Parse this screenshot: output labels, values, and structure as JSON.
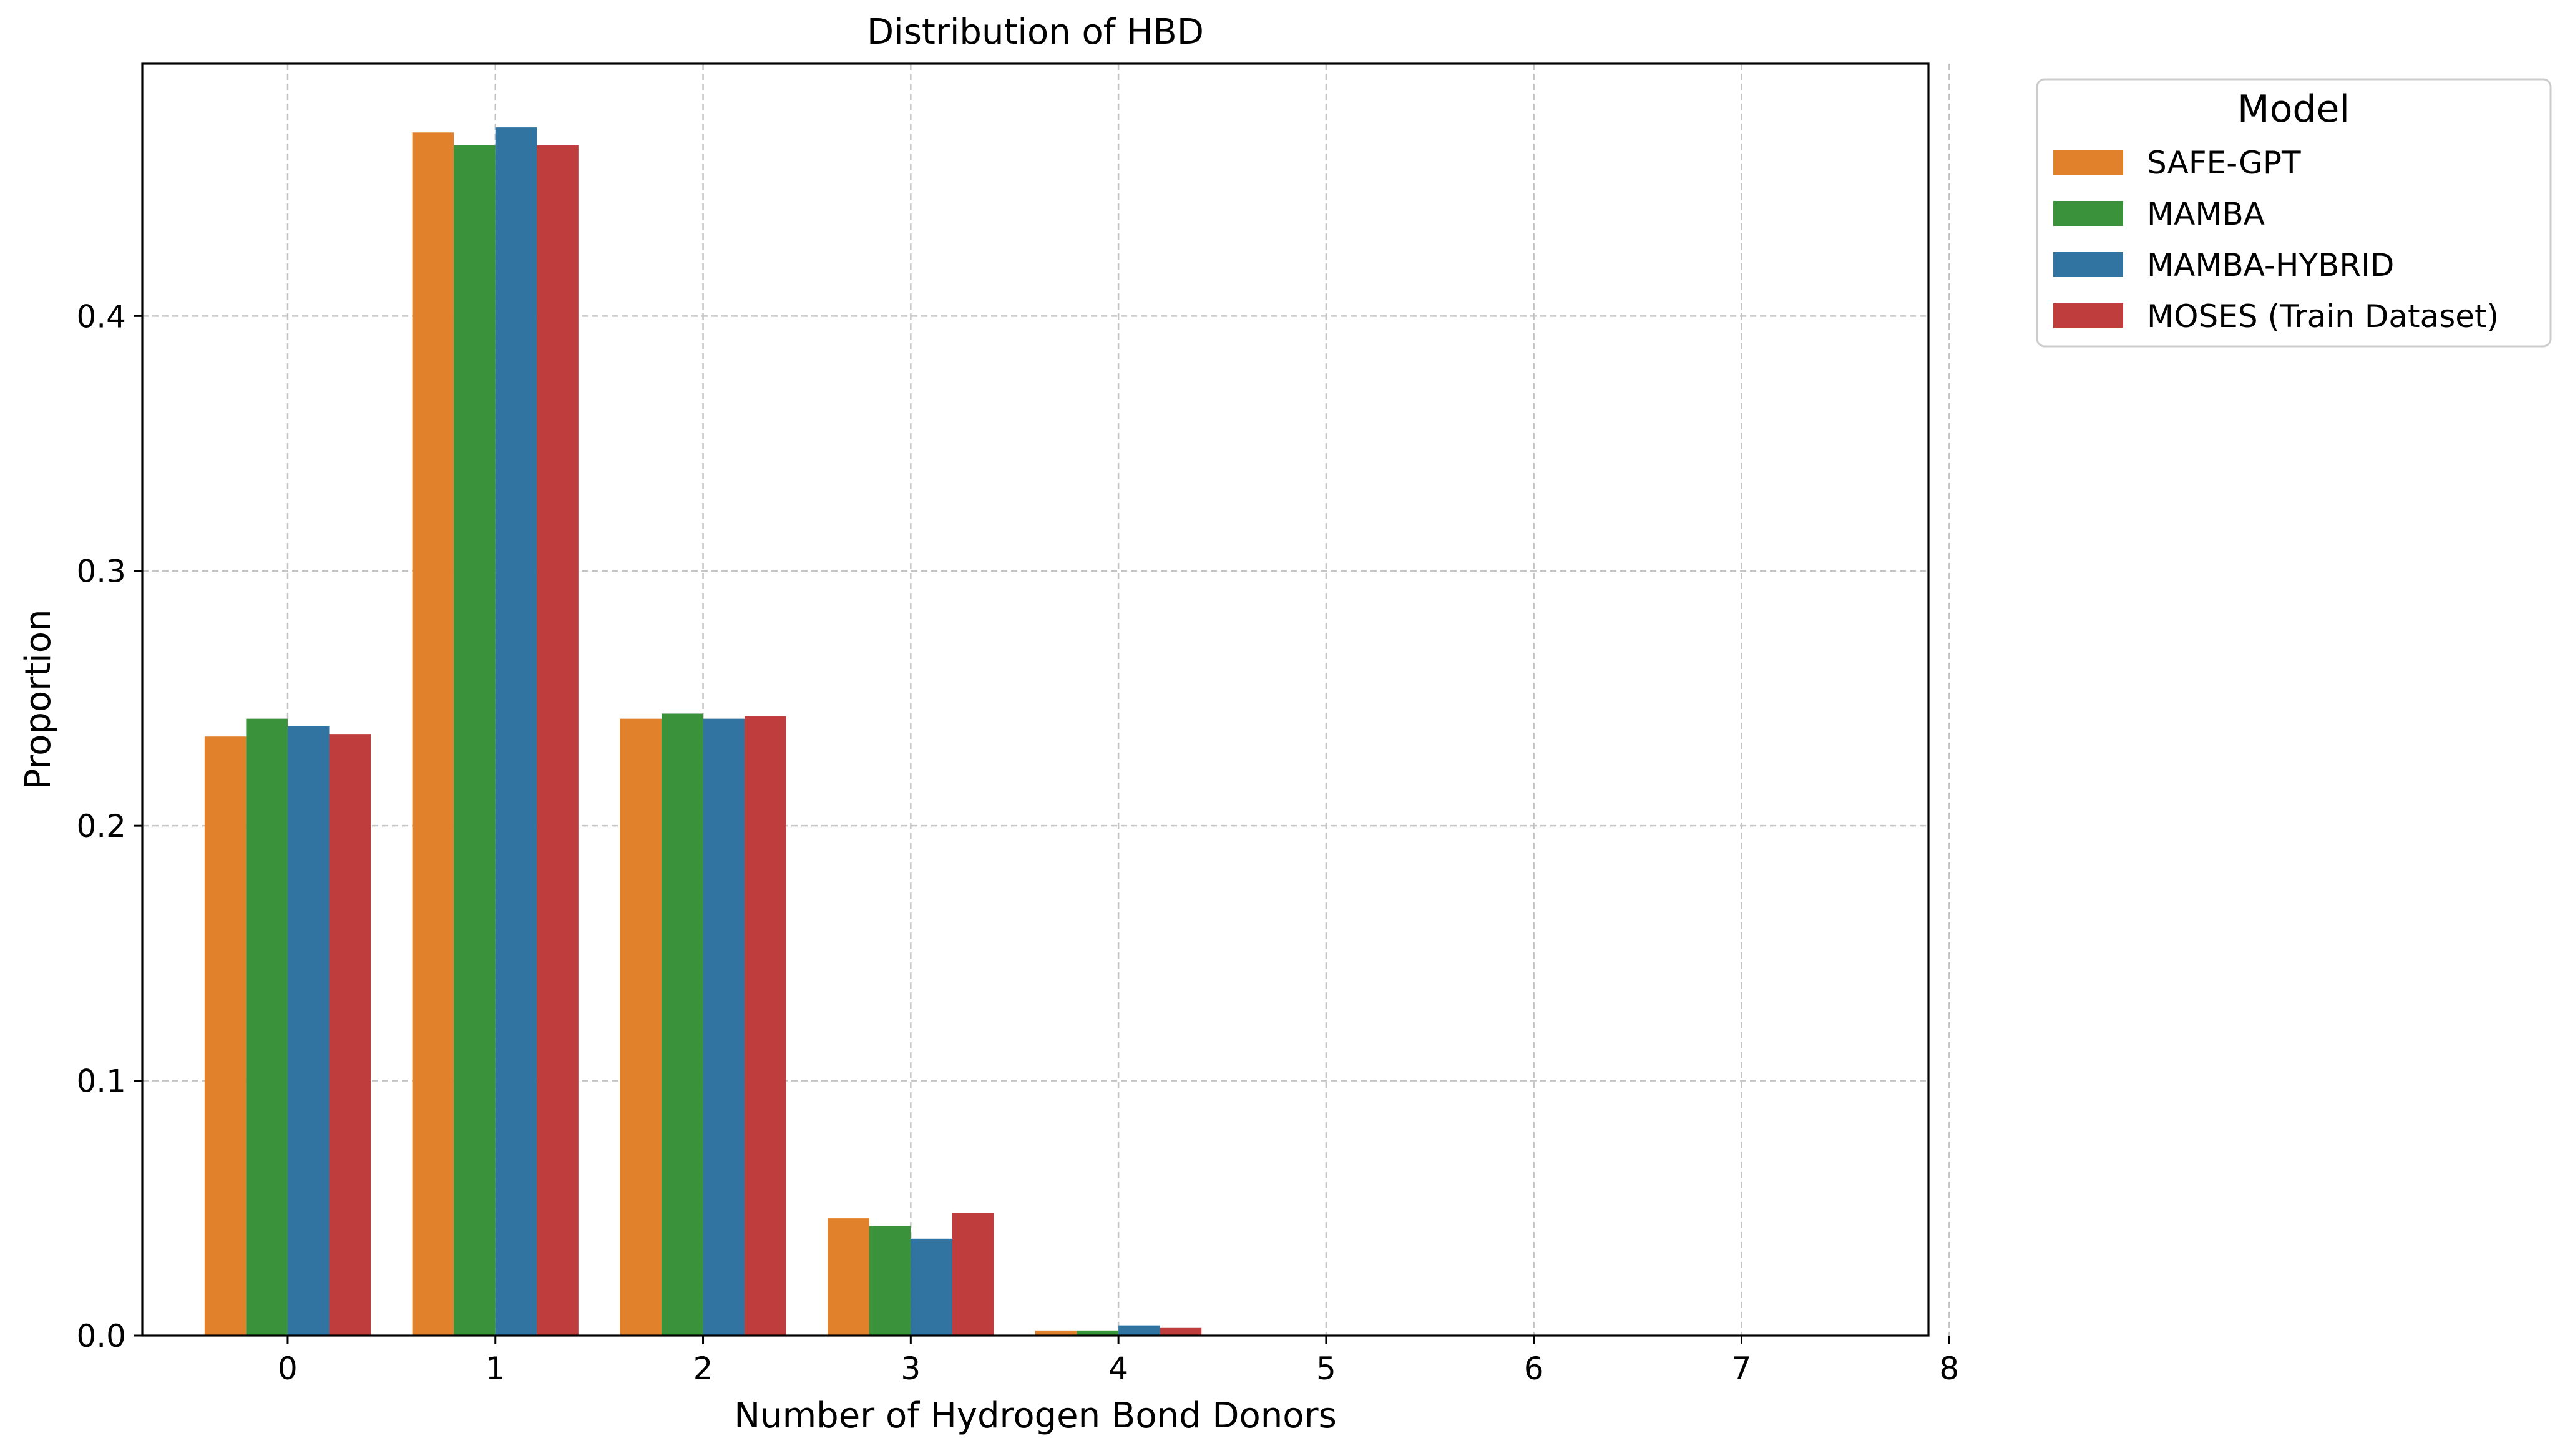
{
  "chart_data": {
    "type": "bar",
    "title": "Distribution of HBD",
    "xlabel": "Number of Hydrogen Bond Donors",
    "ylabel": "Proportion",
    "categories": [
      "0",
      "1",
      "2",
      "3",
      "4",
      "5",
      "6",
      "7",
      "8"
    ],
    "ylim": [
      0,
      0.499
    ],
    "yticks": [
      "0.0",
      "0.1",
      "0.2",
      "0.3",
      "0.4"
    ],
    "grid": true,
    "legend": {
      "title": "Model",
      "position": "outside-top-right"
    },
    "series": [
      {
        "name": "SAFE-GPT",
        "color": "#e1812c",
        "values": [
          0.235,
          0.472,
          0.242,
          0.046,
          0.002,
          0,
          0,
          0,
          0
        ]
      },
      {
        "name": "MAMBA",
        "color": "#3a923a",
        "values": [
          0.242,
          0.467,
          0.244,
          0.043,
          0.002,
          0,
          0,
          0,
          0
        ]
      },
      {
        "name": "MAMBA-HYBRID",
        "color": "#3274a1",
        "values": [
          0.239,
          0.474,
          0.242,
          0.038,
          0.004,
          0,
          0,
          0,
          0
        ]
      },
      {
        "name": "MOSES (Train Dataset)",
        "color": "#c03d3e",
        "values": [
          0.236,
          0.467,
          0.243,
          0.048,
          0.003,
          0,
          0,
          0,
          0
        ]
      }
    ]
  }
}
